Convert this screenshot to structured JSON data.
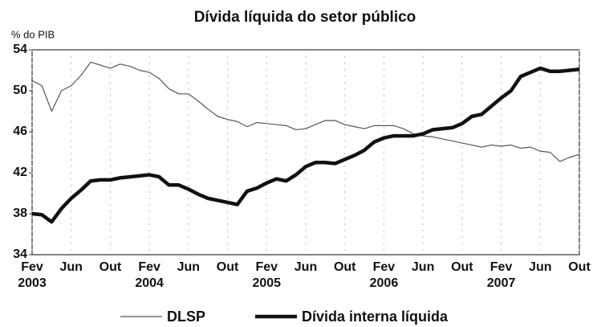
{
  "chart_data": {
    "type": "line",
    "title": "Dívida líquida do setor público",
    "y_label": "% do PIB",
    "categories": [
      "Fev 2003",
      null,
      null,
      null,
      "Jun",
      null,
      null,
      null,
      "Out",
      null,
      null,
      null,
      "Fev 2004",
      null,
      null,
      null,
      "Jun",
      null,
      null,
      null,
      "Out",
      null,
      null,
      null,
      "Fev 2005",
      null,
      null,
      null,
      "Jun",
      null,
      null,
      null,
      "Out",
      null,
      null,
      null,
      "Fev 2006",
      null,
      null,
      null,
      "Jun",
      null,
      null,
      null,
      "Out",
      null,
      null,
      null,
      "Fev 2007",
      null,
      null,
      null,
      "Jun",
      null,
      null,
      null,
      "Out"
    ],
    "series": [
      {
        "name": "DLSP",
        "color": "#555555",
        "width": 1.2,
        "values": [
          51,
          50.5,
          48,
          50,
          50.5,
          51.5,
          52.8,
          52.5,
          52.2,
          52.6,
          52.4,
          52,
          51.8,
          51.2,
          50.2,
          49.7,
          49.7,
          49,
          48.2,
          47.5,
          47.2,
          47,
          46.5,
          46.9,
          46.8,
          46.7,
          46.6,
          46.2,
          46.3,
          46.7,
          47.1,
          47.1,
          46.7,
          46.5,
          46.3,
          46.6,
          46.6,
          46.6,
          46.3,
          45.8,
          45.6,
          45.5,
          45.3,
          45.1,
          44.9,
          44.7,
          44.5,
          44.7,
          44.6,
          44.7,
          44.4,
          44.5,
          44.1,
          44.0,
          43.1,
          43.5,
          43.8
        ]
      },
      {
        "name": "Dívida interna líquida",
        "color": "#111111",
        "width": 4.5,
        "values": [
          38,
          37.9,
          37.2,
          38.5,
          39.5,
          40.3,
          41.2,
          41.3,
          41.3,
          41.5,
          41.6,
          41.7,
          41.8,
          41.6,
          40.8,
          40.8,
          40.4,
          39.9,
          39.5,
          39.3,
          39.1,
          38.9,
          40.2,
          40.5,
          41,
          41.4,
          41.2,
          41.8,
          42.6,
          43,
          43,
          42.9,
          43.3,
          43.7,
          44.2,
          45,
          45.4,
          45.6,
          45.6,
          45.6,
          45.8,
          46.2,
          46.3,
          46.4,
          46.8,
          47.5,
          47.7,
          48.5,
          49.3,
          50,
          51.4,
          51.8,
          52.2,
          51.9,
          51.9,
          52,
          52.1
        ]
      }
    ],
    "ylim": [
      34,
      54
    ],
    "yticks": [
      34,
      38,
      42,
      46,
      50,
      54
    ],
    "grid": true
  }
}
